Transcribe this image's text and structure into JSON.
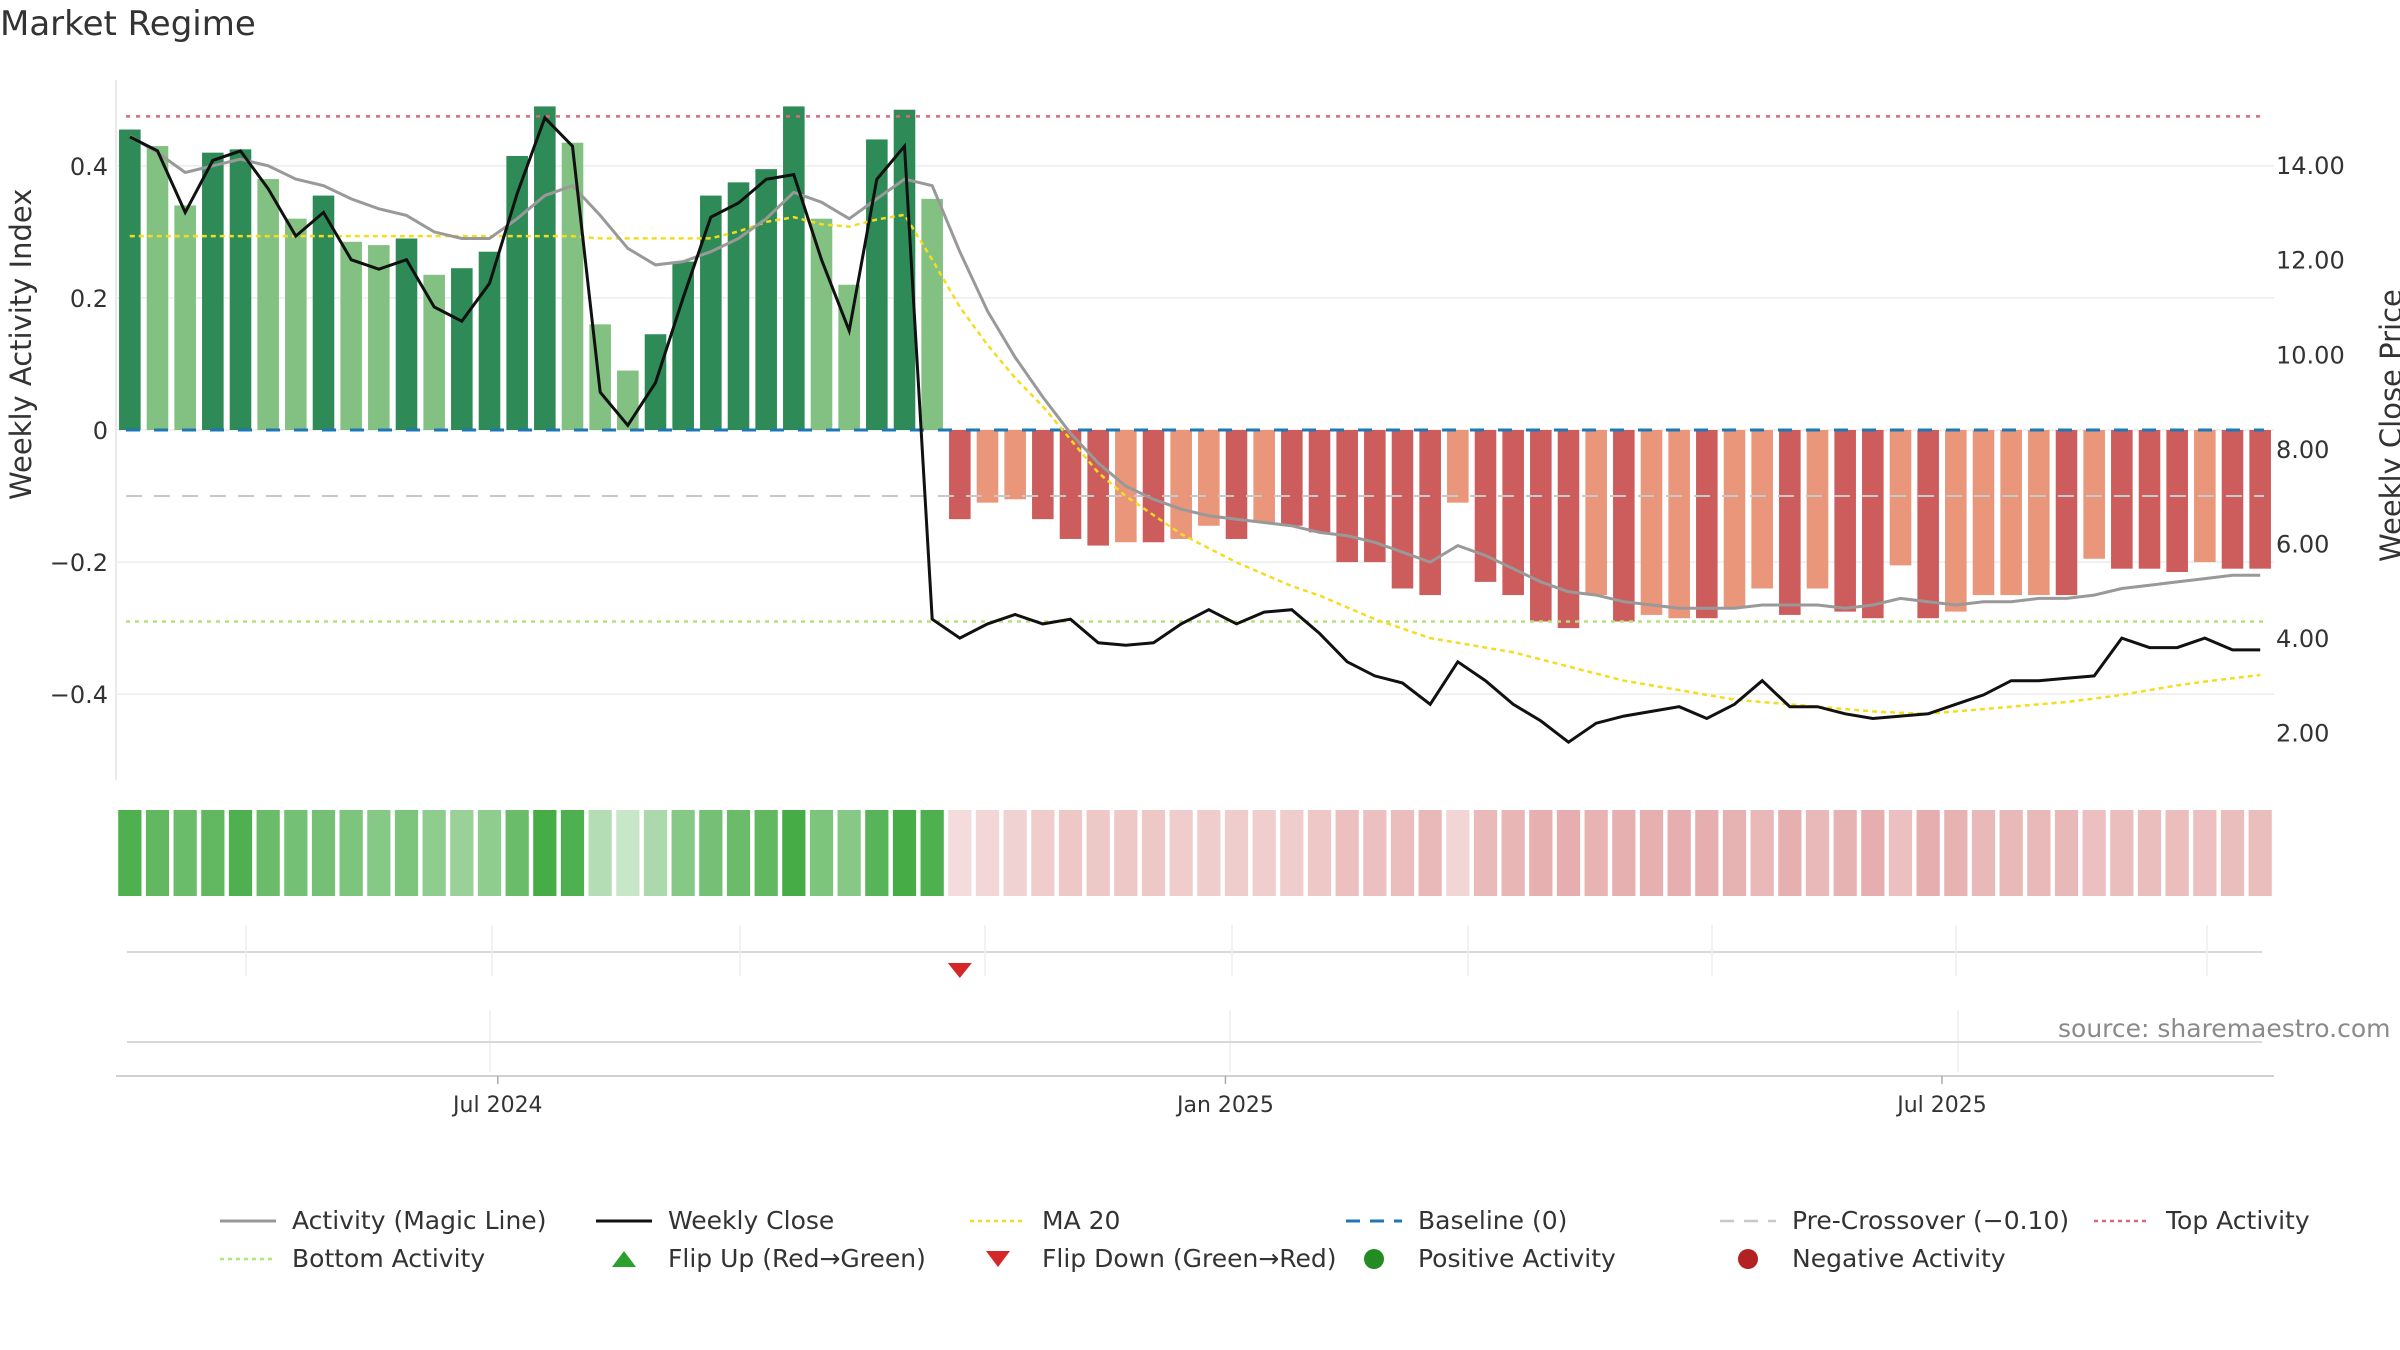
{
  "title": "Market Regime",
  "source_text": "source: sharemaestro.com",
  "colors": {
    "pos_strong": "#2e8b57",
    "pos_light": "#82c182",
    "neg_strong": "#cd5c5c",
    "neg_light": "#e9967a",
    "magic_line": "#999999",
    "close_line": "#111111",
    "ma20": "#f5dc1e",
    "baseline": "#1f77b4",
    "pre_crossover": "#c8c8c8",
    "top_activity": "#d66a7a",
    "bottom_activity": "#b5e17a",
    "flip_up": "#2ca02c",
    "flip_down": "#d62728",
    "positive_dot": "#228b22",
    "negative_dot": "#b22222"
  },
  "chart_data": {
    "type": "bar+line",
    "title": "Market Regime",
    "ylabel_left": "Weekly Activity Index",
    "ylabel_right": "Weekly Close Price",
    "left_axis": {
      "ylim": [
        -0.53,
        0.53
      ],
      "ticks": [
        0.4,
        0.2,
        0,
        -0.2,
        -0.4
      ],
      "tick_labels": [
        "0.4",
        "0.2",
        "0",
        "−0.2",
        "−0.4"
      ]
    },
    "right_axis": {
      "ylim": [
        1.0,
        15.8
      ],
      "ticks": [
        14,
        12,
        10,
        8,
        6,
        4,
        2
      ],
      "tick_labels": [
        "14.00",
        "12.00",
        "10.00",
        "8.00",
        "6.00",
        "4.00",
        "2.00"
      ]
    },
    "x_ticks": [
      {
        "label": "Jul 2024",
        "index": 13.3
      },
      {
        "label": "Jan 2025",
        "index": 39.6
      },
      {
        "label": "Jul 2025",
        "index": 65.5
      }
    ],
    "weeks": 78,
    "activity": [
      0.455,
      0.43,
      0.34,
      0.42,
      0.425,
      0.38,
      0.32,
      0.355,
      0.285,
      0.28,
      0.29,
      0.235,
      0.245,
      0.27,
      0.415,
      0.49,
      0.435,
      0.16,
      0.09,
      0.145,
      0.255,
      0.355,
      0.375,
      0.395,
      0.49,
      0.32,
      0.22,
      0.44,
      0.485,
      0.35,
      -0.135,
      -0.11,
      -0.105,
      -0.135,
      -0.165,
      -0.175,
      -0.17,
      -0.17,
      -0.165,
      -0.145,
      -0.165,
      -0.14,
      -0.145,
      -0.155,
      -0.2,
      -0.2,
      -0.24,
      -0.25,
      -0.11,
      -0.23,
      -0.25,
      -0.29,
      -0.3,
      -0.25,
      -0.29,
      -0.28,
      -0.285,
      -0.285,
      -0.27,
      -0.24,
      -0.28,
      -0.24,
      -0.275,
      -0.285,
      -0.205,
      -0.285,
      -0.275,
      -0.25,
      -0.25,
      -0.25,
      -0.25,
      -0.195,
      -0.21,
      -0.21,
      -0.215,
      -0.2,
      -0.21,
      -0.21
    ],
    "activity_shade": [
      "s",
      "l",
      "l",
      "s",
      "s",
      "l",
      "l",
      "s",
      "l",
      "l",
      "s",
      "l",
      "s",
      "s",
      "s",
      "s",
      "l",
      "l",
      "l",
      "s",
      "s",
      "s",
      "s",
      "s",
      "s",
      "l",
      "l",
      "s",
      "s",
      "l",
      "s",
      "l",
      "l",
      "s",
      "s",
      "s",
      "l",
      "s",
      "l",
      "l",
      "s",
      "l",
      "s",
      "s",
      "s",
      "s",
      "s",
      "s",
      "l",
      "s",
      "s",
      "s",
      "s",
      "l",
      "s",
      "l",
      "l",
      "s",
      "l",
      "l",
      "s",
      "l",
      "s",
      "s",
      "l",
      "s",
      "l",
      "l",
      "l",
      "l",
      "s",
      "l",
      "s",
      "s",
      "s",
      "l",
      "s",
      "s"
    ],
    "magic_line": [
      0.445,
      0.42,
      0.39,
      0.4,
      0.41,
      0.4,
      0.38,
      0.37,
      0.35,
      0.335,
      0.325,
      0.3,
      0.29,
      0.29,
      0.32,
      0.355,
      0.37,
      0.325,
      0.275,
      0.25,
      0.255,
      0.27,
      0.29,
      0.32,
      0.36,
      0.345,
      0.32,
      0.35,
      0.38,
      0.37,
      0.27,
      0.18,
      0.11,
      0.05,
      -0.005,
      -0.05,
      -0.085,
      -0.105,
      -0.12,
      -0.13,
      -0.135,
      -0.14,
      -0.145,
      -0.155,
      -0.16,
      -0.17,
      -0.185,
      -0.2,
      -0.175,
      -0.19,
      -0.21,
      -0.23,
      -0.245,
      -0.25,
      -0.26,
      -0.265,
      -0.27,
      -0.27,
      -0.27,
      -0.265,
      -0.265,
      -0.265,
      -0.27,
      -0.265,
      -0.255,
      -0.26,
      -0.265,
      -0.26,
      -0.26,
      -0.255,
      -0.255,
      -0.25,
      -0.24,
      -0.235,
      -0.23,
      -0.225,
      -0.22,
      -0.22
    ],
    "weekly_close": [
      14.6,
      14.3,
      13.0,
      14.1,
      14.3,
      13.5,
      12.5,
      13.0,
      12.0,
      11.8,
      12.0,
      11.0,
      10.7,
      11.5,
      13.4,
      15.0,
      14.4,
      9.2,
      8.5,
      9.4,
      11.2,
      12.9,
      13.2,
      13.7,
      13.8,
      12.0,
      10.5,
      13.7,
      14.4,
      4.4,
      4.0,
      4.3,
      4.5,
      4.3,
      4.4,
      3.9,
      3.85,
      3.9,
      4.3,
      4.6,
      4.3,
      4.55,
      4.6,
      4.1,
      3.5,
      3.2,
      3.05,
      2.6,
      3.5,
      3.1,
      2.6,
      2.25,
      1.8,
      2.2,
      2.35,
      2.45,
      2.55,
      2.3,
      2.6,
      3.1,
      2.55,
      2.55,
      2.4,
      2.3,
      2.35,
      2.4,
      2.6,
      2.8,
      3.1,
      3.1,
      3.15,
      3.2,
      4.0,
      3.8,
      3.8,
      4.0,
      3.75,
      3.75
    ],
    "ma20": [
      12.5,
      12.5,
      12.5,
      12.5,
      12.5,
      12.5,
      12.5,
      12.5,
      12.5,
      12.5,
      12.5,
      12.5,
      12.5,
      12.5,
      12.5,
      12.5,
      12.5,
      12.45,
      12.45,
      12.45,
      12.45,
      12.45,
      12.6,
      12.8,
      12.9,
      12.75,
      12.7,
      12.85,
      12.95,
      12.0,
      11.0,
      10.2,
      9.5,
      8.9,
      8.2,
      7.5,
      7.0,
      6.6,
      6.2,
      5.9,
      5.6,
      5.35,
      5.1,
      4.9,
      4.65,
      4.4,
      4.2,
      4.0,
      3.9,
      3.8,
      3.7,
      3.55,
      3.4,
      3.25,
      3.1,
      3.0,
      2.9,
      2.8,
      2.7,
      2.65,
      2.6,
      2.55,
      2.5,
      2.45,
      2.42,
      2.4,
      2.45,
      2.5,
      2.55,
      2.6,
      2.65,
      2.72,
      2.8,
      2.9,
      3.0,
      3.08,
      3.15,
      3.22
    ],
    "baseline_value": 0,
    "pre_crossover_value": -0.1,
    "top_activity_value": 0.475,
    "bottom_activity_value": -0.29,
    "regime_strip_opacity": [
      0.95,
      0.85,
      0.8,
      0.85,
      0.95,
      0.8,
      0.75,
      0.75,
      0.7,
      0.65,
      0.7,
      0.6,
      0.55,
      0.6,
      0.8,
      1.0,
      0.95,
      0.4,
      0.3,
      0.45,
      0.65,
      0.75,
      0.8,
      0.85,
      1.0,
      0.7,
      0.65,
      0.9,
      1.0,
      0.95,
      0.35,
      0.4,
      0.45,
      0.5,
      0.55,
      0.55,
      0.55,
      0.55,
      0.5,
      0.5,
      0.5,
      0.48,
      0.5,
      0.55,
      0.62,
      0.62,
      0.66,
      0.7,
      0.42,
      0.68,
      0.72,
      0.78,
      0.8,
      0.75,
      0.78,
      0.78,
      0.8,
      0.8,
      0.76,
      0.7,
      0.78,
      0.7,
      0.76,
      0.8,
      0.62,
      0.8,
      0.76,
      0.7,
      0.7,
      0.7,
      0.7,
      0.62,
      0.64,
      0.64,
      0.65,
      0.62,
      0.64,
      0.64
    ],
    "flip_down_index": 30
  },
  "legend": [
    {
      "id": "magic",
      "label": "Activity (Magic Line)",
      "symbol": "line-gray"
    },
    {
      "id": "close",
      "label": "Weekly Close",
      "symbol": "line-black"
    },
    {
      "id": "ma20",
      "label": "MA 20",
      "symbol": "dotted-yellow"
    },
    {
      "id": "baseline",
      "label": "Baseline (0)",
      "symbol": "dashed-blue"
    },
    {
      "id": "precross",
      "label": "Pre-Crossover (−0.10)",
      "symbol": "dashed-gray"
    },
    {
      "id": "top",
      "label": "Top Activity",
      "symbol": "dotted-red"
    },
    {
      "id": "bottom",
      "label": "Bottom Activity",
      "symbol": "dotted-green"
    },
    {
      "id": "flipup",
      "label": "Flip Up (Red→Green)",
      "symbol": "triangle-up"
    },
    {
      "id": "flipdown",
      "label": "Flip Down (Green→Red)",
      "symbol": "triangle-down"
    },
    {
      "id": "posdot",
      "label": "Positive Activity",
      "symbol": "dot-green"
    },
    {
      "id": "negdot",
      "label": "Negative Activity",
      "symbol": "dot-red"
    }
  ]
}
